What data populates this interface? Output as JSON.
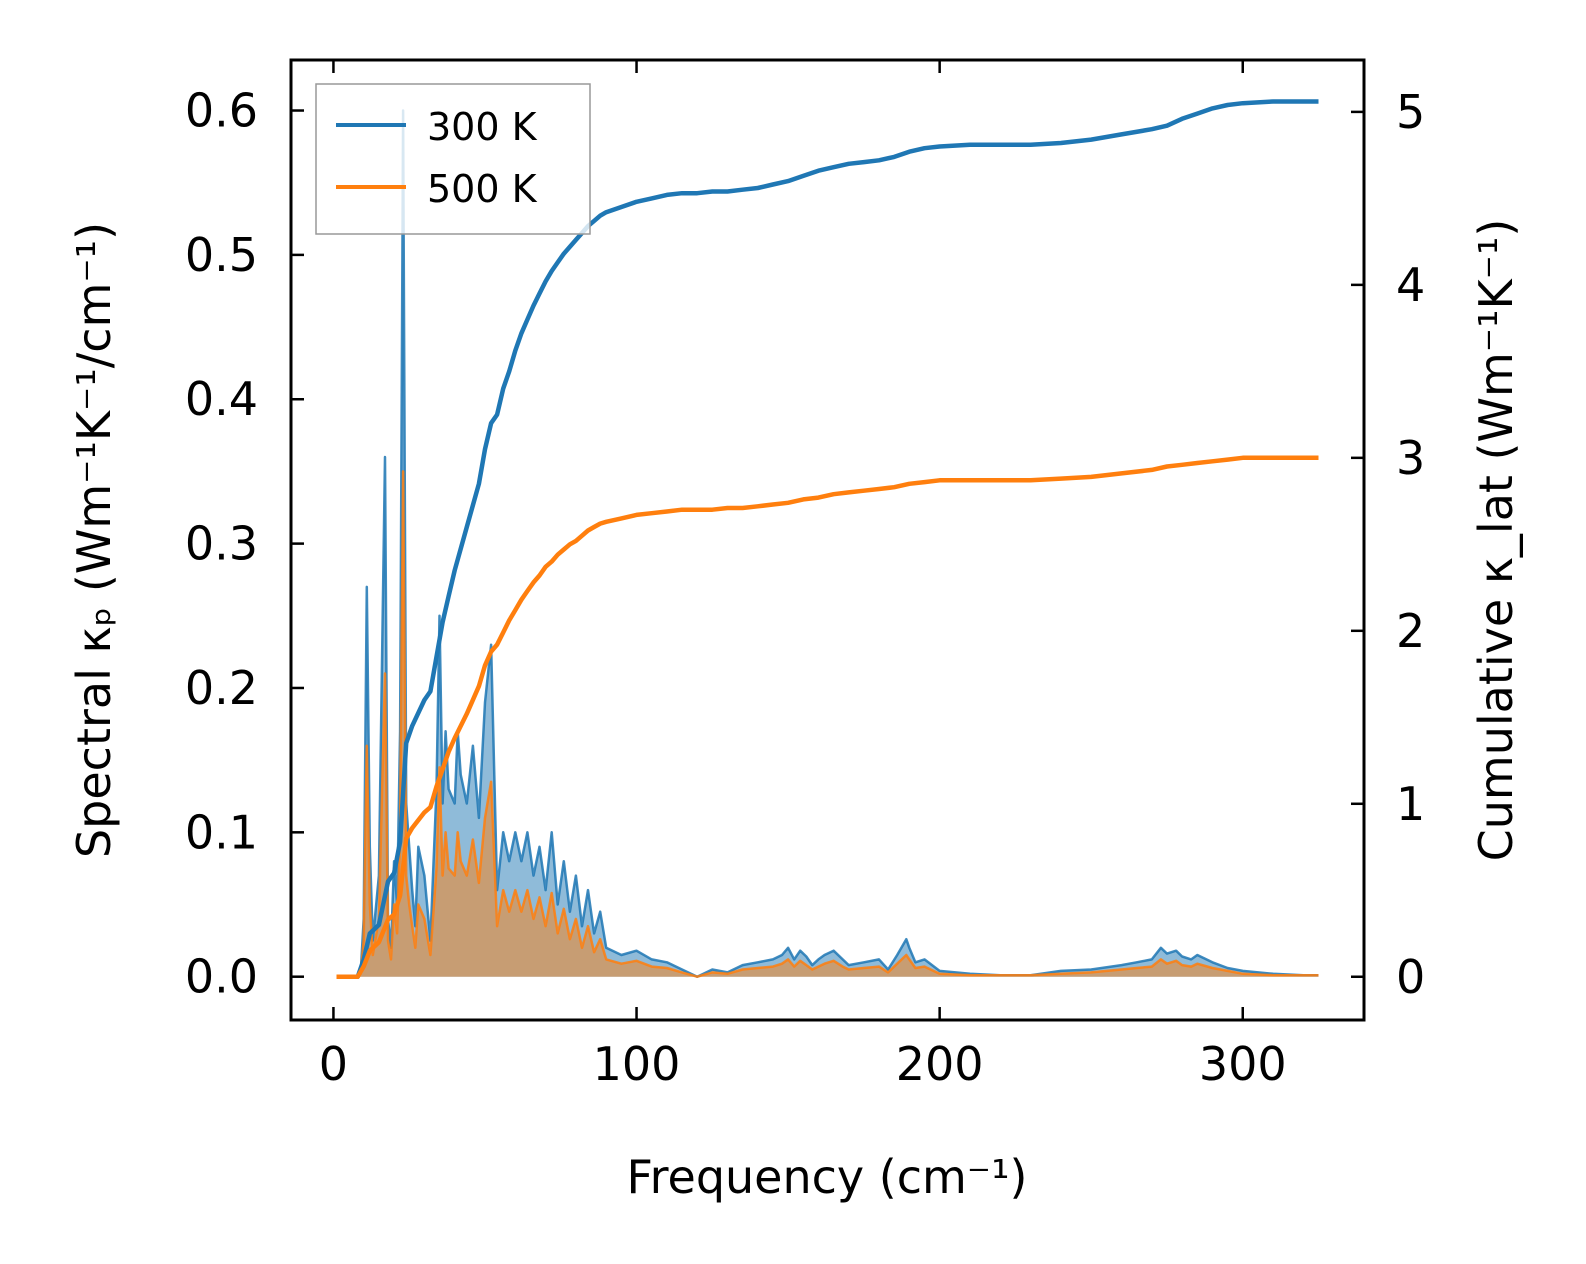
{
  "chart_data": {
    "type": "line",
    "xlabel": "Frequency (cm⁻¹)",
    "ylabel_left": "Spectral κₚ (Wm⁻¹K⁻¹/cm⁻¹)",
    "ylabel_right": "Cumulative κ_lat (Wm⁻¹K⁻¹)",
    "xlim": [
      -14,
      340
    ],
    "ylim_left": [
      -0.03,
      0.635
    ],
    "ylim_right": [
      -0.25,
      5.3
    ],
    "x_ticks": [
      0,
      100,
      200,
      300
    ],
    "x_tick_labels": [
      "0",
      "100",
      "200",
      "300"
    ],
    "y_left_ticks": [
      0.0,
      0.1,
      0.2,
      0.3,
      0.4,
      0.5,
      0.6
    ],
    "y_left_tick_labels": [
      "0.0",
      "0.1",
      "0.2",
      "0.3",
      "0.4",
      "0.5",
      "0.6"
    ],
    "y_right_ticks": [
      0,
      1,
      2,
      3,
      4,
      5
    ],
    "y_right_tick_labels": [
      "0",
      "1",
      "2",
      "3",
      "4",
      "5"
    ],
    "legend": {
      "location": "top-left",
      "entries": [
        "300 K",
        "500 K"
      ]
    },
    "series": [
      {
        "name": "300 K",
        "color": "#1f77b4",
        "fill_color": "#1f77b4",
        "spectral": {
          "x": [
            1,
            3,
            5,
            7,
            8,
            9,
            10,
            11,
            12,
            13,
            15,
            17,
            18,
            19,
            20,
            21,
            22,
            23,
            24,
            25,
            26,
            27,
            28,
            30,
            32,
            34,
            35,
            36,
            37,
            38,
            40,
            41,
            42,
            44,
            46,
            48,
            50,
            52,
            54,
            56,
            58,
            60,
            62,
            64,
            66,
            68,
            70,
            72,
            74,
            76,
            78,
            80,
            82,
            84,
            86,
            88,
            90,
            95,
            100,
            105,
            110,
            115,
            120,
            125,
            130,
            135,
            140,
            145,
            148,
            150,
            152,
            154,
            156,
            158,
            160,
            162,
            165,
            168,
            170,
            175,
            180,
            183,
            186,
            189,
            190,
            192,
            195,
            200,
            210,
            220,
            230,
            240,
            250,
            260,
            265,
            270,
            273,
            275,
            278,
            280,
            283,
            285,
            290,
            295,
            300,
            310,
            320,
            325
          ],
          "y": [
            0,
            0,
            0,
            0,
            0,
            0.003,
            0.04,
            0.27,
            0.09,
            0.025,
            0.07,
            0.36,
            0.04,
            0.02,
            0.08,
            0.05,
            0.17,
            0.6,
            0.12,
            0.09,
            0.06,
            0.035,
            0.09,
            0.07,
            0.025,
            0.13,
            0.25,
            0.12,
            0.17,
            0.13,
            0.12,
            0.17,
            0.14,
            0.12,
            0.16,
            0.11,
            0.19,
            0.23,
            0.06,
            0.1,
            0.08,
            0.1,
            0.08,
            0.1,
            0.07,
            0.09,
            0.06,
            0.1,
            0.05,
            0.08,
            0.045,
            0.07,
            0.035,
            0.06,
            0.03,
            0.045,
            0.02,
            0.015,
            0.018,
            0.012,
            0.01,
            0.005,
            0,
            0.005,
            0.003,
            0.008,
            0.01,
            0.012,
            0.015,
            0.02,
            0.012,
            0.018,
            0.014,
            0.008,
            0.012,
            0.015,
            0.018,
            0.012,
            0.008,
            0.01,
            0.012,
            0.005,
            0.015,
            0.026,
            0.02,
            0.01,
            0.012,
            0.004,
            0.002,
            0.001,
            0.001,
            0.004,
            0.005,
            0.008,
            0.01,
            0.012,
            0.02,
            0.016,
            0.018,
            0.014,
            0.012,
            0.015,
            0.01,
            0.006,
            0.004,
            0.002,
            0.001,
            0.001
          ]
        },
        "cumulative": {
          "x": [
            1,
            5,
            8,
            10,
            12,
            15,
            18,
            20,
            22,
            24,
            26,
            30,
            32,
            34,
            36,
            38,
            40,
            44,
            48,
            50,
            52,
            54,
            56,
            58,
            60,
            62,
            64,
            66,
            68,
            70,
            72,
            74,
            76,
            78,
            80,
            82,
            84,
            86,
            88,
            90,
            95,
            100,
            105,
            110,
            115,
            120,
            125,
            130,
            135,
            140,
            145,
            150,
            155,
            160,
            165,
            170,
            175,
            180,
            185,
            190,
            195,
            200,
            210,
            220,
            230,
            240,
            250,
            260,
            270,
            275,
            280,
            285,
            290,
            295,
            300,
            310,
            320,
            325
          ],
          "y": [
            0,
            0,
            0,
            0.1,
            0.25,
            0.3,
            0.55,
            0.6,
            0.78,
            1.35,
            1.45,
            1.6,
            1.65,
            1.85,
            2.05,
            2.2,
            2.35,
            2.6,
            2.85,
            3.05,
            3.2,
            3.25,
            3.4,
            3.5,
            3.62,
            3.72,
            3.8,
            3.88,
            3.95,
            4.02,
            4.08,
            4.13,
            4.18,
            4.22,
            4.26,
            4.3,
            4.34,
            4.37,
            4.4,
            4.42,
            4.45,
            4.48,
            4.5,
            4.52,
            4.53,
            4.53,
            4.54,
            4.54,
            4.55,
            4.56,
            4.58,
            4.6,
            4.63,
            4.66,
            4.68,
            4.7,
            4.71,
            4.72,
            4.74,
            4.77,
            4.79,
            4.8,
            4.81,
            4.81,
            4.81,
            4.82,
            4.84,
            4.87,
            4.9,
            4.92,
            4.96,
            4.99,
            5.02,
            5.04,
            5.05,
            5.06,
            5.06,
            5.06
          ]
        }
      },
      {
        "name": "500 K",
        "color": "#ff7f0e",
        "fill_color": "#ff7f0e",
        "spectral": {
          "x": [
            1,
            3,
            5,
            7,
            8,
            9,
            10,
            11,
            12,
            13,
            15,
            17,
            18,
            19,
            20,
            21,
            22,
            23,
            24,
            25,
            26,
            27,
            28,
            30,
            32,
            34,
            35,
            36,
            37,
            38,
            40,
            41,
            42,
            44,
            46,
            48,
            50,
            52,
            54,
            56,
            58,
            60,
            62,
            64,
            66,
            68,
            70,
            72,
            74,
            76,
            78,
            80,
            82,
            84,
            86,
            88,
            90,
            95,
            100,
            105,
            110,
            115,
            120,
            125,
            130,
            135,
            140,
            145,
            148,
            150,
            152,
            154,
            156,
            158,
            160,
            162,
            165,
            168,
            170,
            175,
            180,
            183,
            186,
            189,
            190,
            192,
            195,
            200,
            210,
            220,
            230,
            240,
            250,
            260,
            265,
            270,
            273,
            275,
            278,
            280,
            283,
            285,
            290,
            295,
            300,
            310,
            320,
            325
          ],
          "y": [
            0,
            0,
            0,
            0,
            0,
            0.002,
            0.025,
            0.16,
            0.05,
            0.015,
            0.04,
            0.21,
            0.025,
            0.012,
            0.05,
            0.03,
            0.1,
            0.35,
            0.07,
            0.05,
            0.035,
            0.02,
            0.05,
            0.04,
            0.015,
            0.075,
            0.145,
            0.07,
            0.1,
            0.075,
            0.07,
            0.1,
            0.08,
            0.07,
            0.095,
            0.065,
            0.11,
            0.135,
            0.035,
            0.06,
            0.045,
            0.06,
            0.045,
            0.06,
            0.04,
            0.055,
            0.035,
            0.058,
            0.03,
            0.047,
            0.026,
            0.04,
            0.02,
            0.035,
            0.017,
            0.026,
            0.012,
            0.009,
            0.011,
            0.007,
            0.006,
            0.003,
            0,
            0.003,
            0.002,
            0.005,
            0.006,
            0.007,
            0.009,
            0.012,
            0.007,
            0.011,
            0.008,
            0.005,
            0.007,
            0.009,
            0.011,
            0.007,
            0.005,
            0.006,
            0.007,
            0.003,
            0.009,
            0.015,
            0.012,
            0.006,
            0.007,
            0.002,
            0.001,
            0.001,
            0.001,
            0.002,
            0.003,
            0.005,
            0.006,
            0.007,
            0.012,
            0.009,
            0.011,
            0.008,
            0.007,
            0.009,
            0.006,
            0.004,
            0.002,
            0.001,
            0.001,
            0.001
          ]
        },
        "cumulative": {
          "x": [
            1,
            5,
            8,
            10,
            12,
            15,
            18,
            20,
            22,
            24,
            26,
            30,
            32,
            34,
            36,
            38,
            40,
            44,
            48,
            50,
            52,
            54,
            56,
            58,
            60,
            62,
            64,
            66,
            68,
            70,
            72,
            74,
            76,
            78,
            80,
            82,
            84,
            86,
            88,
            90,
            95,
            100,
            105,
            110,
            115,
            120,
            125,
            130,
            135,
            140,
            145,
            150,
            155,
            160,
            165,
            170,
            175,
            180,
            185,
            190,
            195,
            200,
            210,
            220,
            230,
            240,
            250,
            260,
            270,
            275,
            280,
            285,
            290,
            295,
            300,
            310,
            320,
            325
          ],
          "y": [
            0,
            0,
            0,
            0.06,
            0.15,
            0.2,
            0.33,
            0.36,
            0.47,
            0.8,
            0.86,
            0.95,
            0.98,
            1.1,
            1.2,
            1.3,
            1.38,
            1.52,
            1.68,
            1.8,
            1.88,
            1.92,
            1.99,
            2.06,
            2.12,
            2.18,
            2.23,
            2.28,
            2.32,
            2.37,
            2.4,
            2.44,
            2.47,
            2.5,
            2.52,
            2.55,
            2.58,
            2.6,
            2.62,
            2.63,
            2.65,
            2.67,
            2.68,
            2.69,
            2.7,
            2.7,
            2.7,
            2.71,
            2.71,
            2.72,
            2.73,
            2.74,
            2.76,
            2.77,
            2.79,
            2.8,
            2.81,
            2.82,
            2.83,
            2.85,
            2.86,
            2.87,
            2.87,
            2.87,
            2.87,
            2.88,
            2.89,
            2.91,
            2.93,
            2.95,
            2.96,
            2.97,
            2.98,
            2.99,
            3.0,
            3.0,
            3.0,
            3.0
          ]
        }
      }
    ]
  }
}
